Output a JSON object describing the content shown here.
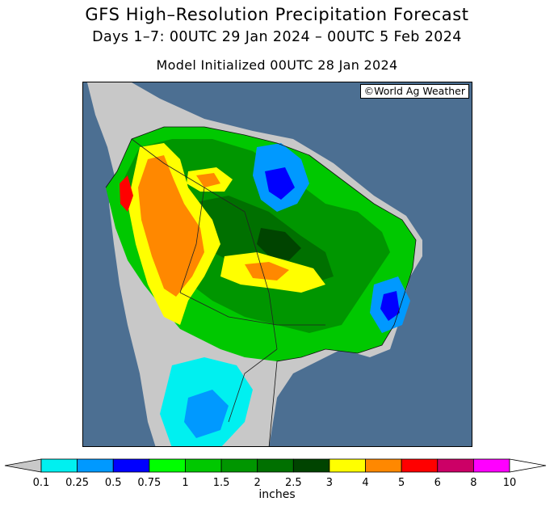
{
  "header": {
    "title": "GFS High–Resolution Precipitation Forecast",
    "subtitle": "Days 1–7: 00UTC 29 Jan 2024 – 00UTC 5 Feb 2024",
    "init": "Model Initialized 00UTC 28 Jan 2024"
  },
  "map": {
    "credit": "©World Ag Weather",
    "ocean_color": "#4c6f92",
    "land_dry_color": "#c8c8c8"
  },
  "legend": {
    "units": "inches",
    "ticks": [
      "0.1",
      "0.25",
      "0.5",
      "0.75",
      "1",
      "1.5",
      "2",
      "2.5",
      "3",
      "4",
      "5",
      "6",
      "8",
      "10"
    ],
    "colors": [
      "#00f0f0",
      "#0099ff",
      "#0000ff",
      "#00ff00",
      "#00c800",
      "#009600",
      "#007000",
      "#004400",
      "#ffff00",
      "#ff8800",
      "#ff0000",
      "#cc0066",
      "#ff00ff",
      "#9955dd"
    ]
  }
}
